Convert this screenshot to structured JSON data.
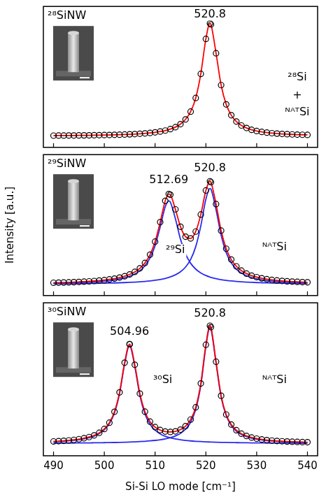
{
  "chart_data": [
    {
      "type": "line",
      "panel_label": "²⁸SiNW",
      "x": [
        490,
        491,
        492,
        493,
        494,
        495,
        496,
        497,
        498,
        499,
        500,
        501,
        502,
        503,
        504,
        505,
        506,
        507,
        508,
        509,
        510,
        511,
        512,
        513,
        514,
        515,
        516,
        517,
        518,
        519,
        520,
        520.8,
        521,
        522,
        523,
        524,
        525,
        526,
        527,
        528,
        529,
        530,
        531,
        532,
        533,
        534,
        535,
        536,
        537,
        538,
        539,
        540
      ],
      "series": [
        {
          "color": "#000000",
          "marker": "circle",
          "line_style": "none",
          "values": [
            0.0042,
            0.0045,
            0.0048,
            0.0051,
            0.0055,
            0.006,
            0.0065,
            0.007,
            0.0076,
            0.0083,
            0.0092,
            0.0101,
            0.0112,
            0.0125,
            0.014,
            0.0158,
            0.0179,
            0.0206,
            0.0238,
            0.0279,
            0.0331,
            0.04,
            0.049,
            0.062,
            0.079,
            0.106,
            0.148,
            0.217,
            0.338,
            0.552,
            0.862,
            1.0,
            0.99,
            0.735,
            0.452,
            0.281,
            0.185,
            0.129,
            0.094,
            0.072,
            0.056,
            0.045,
            0.037,
            0.031,
            0.026,
            0.022,
            0.019,
            0.017,
            0.015,
            0.013,
            0.012,
            0.011
          ]
        },
        {
          "color": "#ff0000",
          "marker": "none",
          "line_style": "solid",
          "values": [
            0.0042,
            0.0045,
            0.0048,
            0.0051,
            0.0055,
            0.006,
            0.0065,
            0.007,
            0.0076,
            0.0083,
            0.0092,
            0.0101,
            0.0112,
            0.0125,
            0.014,
            0.0158,
            0.0179,
            0.0206,
            0.0238,
            0.0279,
            0.0331,
            0.04,
            0.049,
            0.062,
            0.079,
            0.106,
            0.148,
            0.217,
            0.338,
            0.552,
            0.862,
            1.0,
            0.99,
            0.735,
            0.452,
            0.281,
            0.185,
            0.129,
            0.094,
            0.072,
            0.056,
            0.045,
            0.037,
            0.031,
            0.026,
            0.022,
            0.019,
            0.017,
            0.015,
            0.013,
            0.012,
            0.011
          ]
        }
      ],
      "xlim": [
        488,
        542
      ],
      "xticks": [
        490,
        500,
        510,
        520,
        530,
        540
      ],
      "ylim": [
        -0.1,
        1.15
      ],
      "yticks": [],
      "grid": false,
      "tick_labels": false,
      "annotations": [
        {
          "value": 520.8,
          "y": 1.08
        },
        {
          "text": "²⁸Si",
          "x": 538,
          "y": 0.52
        },
        {
          "text": "+",
          "x": 538,
          "y": 0.36
        },
        {
          "text": "ᴺᴬᵀSi",
          "x": 538,
          "y": 0.21
        }
      ]
    },
    {
      "type": "line",
      "panel_label": "²⁹SiNW",
      "ylabel": "Intensity [a.u.]",
      "x": [
        490,
        491,
        492,
        493,
        494,
        495,
        496,
        497,
        498,
        499,
        500,
        501,
        502,
        503,
        504,
        505,
        506,
        507,
        508,
        509,
        510,
        511,
        512,
        512.69,
        513,
        514,
        515,
        516,
        517,
        518,
        519,
        520,
        520.8,
        521,
        522,
        523,
        524,
        525,
        526,
        527,
        528,
        529,
        530,
        531,
        532,
        533,
        534,
        535,
        536,
        537,
        538,
        539,
        540
      ],
      "series": [
        {
          "color": "#000000",
          "marker": "circle",
          "line_style": "none",
          "values": [
            0.0134,
            0.0145,
            0.0158,
            0.0172,
            0.0189,
            0.0209,
            0.0231,
            0.0258,
            0.029,
            0.0329,
            0.0374,
            0.0431,
            0.0503,
            0.0596,
            0.0715,
            0.0876,
            0.1099,
            0.1417,
            0.1892,
            0.2625,
            0.3783,
            0.5506,
            0.7402,
            0.8007,
            0.7943,
            0.6645,
            0.5103,
            0.422,
            0.407,
            0.4678,
            0.6187,
            0.8321,
            0.9142,
            0.9047,
            0.7116,
            0.4757,
            0.3157,
            0.2189,
            0.1592,
            0.1208,
            0.0948,
            0.0765,
            0.0631,
            0.053,
            0.0452,
            0.039,
            0.0341,
            0.03,
            0.0266,
            0.0238,
            0.0214,
            0.0194,
            0.0177
          ]
        },
        {
          "color": "#ff0000",
          "marker": "none",
          "line_style": "solid",
          "values": [
            0.0134,
            0.0145,
            0.0158,
            0.0172,
            0.0189,
            0.0209,
            0.0231,
            0.0258,
            0.029,
            0.0329,
            0.0374,
            0.0431,
            0.0503,
            0.0596,
            0.0715,
            0.0876,
            0.1099,
            0.1417,
            0.1892,
            0.2625,
            0.3783,
            0.5506,
            0.7402,
            0.8007,
            0.7943,
            0.6645,
            0.5103,
            0.422,
            0.407,
            0.4678,
            0.6187,
            0.8321,
            0.9142,
            0.9047,
            0.7116,
            0.4757,
            0.3157,
            0.2189,
            0.1592,
            0.1208,
            0.0948,
            0.0765,
            0.0631,
            0.053,
            0.0452,
            0.039,
            0.0341,
            0.03,
            0.0266,
            0.0238,
            0.0214,
            0.0194,
            0.0177
          ]
        },
        {
          "color": "#2a2af0",
          "marker": "none",
          "line_style": "solid",
          "values": [
            0.0089,
            0.0097,
            0.0106,
            0.0117,
            0.013,
            0.0145,
            0.0162,
            0.0183,
            0.0208,
            0.0239,
            0.0276,
            0.0323,
            0.0383,
            0.0462,
            0.0565,
            0.0707,
            0.0907,
            0.1197,
            0.1637,
            0.2327,
            0.3429,
            0.508,
            0.688,
            0.74,
            0.729,
            0.5806,
            0.399,
            0.2688,
            0.1863,
            0.1343,
            0.1004,
            0.0775,
            0.0642,
            0.0614,
            0.0498,
            0.0411,
            0.0345,
            0.0293,
            0.0252,
            0.0219,
            0.0192,
            0.017,
            0.0151,
            0.0136,
            0.0122,
            0.011,
            0.0101,
            0.0092,
            0.0084,
            0.0077,
            0.0071,
            0.0066,
            0.0062
          ]
        },
        {
          "color": "#2a2af0",
          "marker": "none",
          "line_style": "solid",
          "values": [
            0.0045,
            0.0048,
            0.0052,
            0.0055,
            0.0059,
            0.0064,
            0.0069,
            0.0075,
            0.0082,
            0.009,
            0.0098,
            0.0108,
            0.012,
            0.0134,
            0.015,
            0.0169,
            0.0192,
            0.022,
            0.0255,
            0.0298,
            0.0354,
            0.0426,
            0.0522,
            0.0607,
            0.0653,
            0.0839,
            0.1113,
            0.1532,
            0.2207,
            0.3335,
            0.5183,
            0.7546,
            0.85,
            0.8433,
            0.6618,
            0.4346,
            0.2812,
            0.1896,
            0.134,
            0.0989,
            0.0756,
            0.0595,
            0.048,
            0.0394,
            0.033,
            0.028,
            0.024,
            0.0208,
            0.0182,
            0.0161,
            0.0143,
            0.0128,
            0.0115
          ]
        }
      ],
      "xlim": [
        488,
        542
      ],
      "xticks": [
        490,
        500,
        510,
        520,
        530,
        540
      ],
      "ylim": [
        -0.1,
        1.15
      ],
      "yticks": [],
      "grid": false,
      "tick_labels": false,
      "annotations": [
        {
          "value": 512.69,
          "y": 0.92
        },
        {
          "value": 520.8,
          "y": 1.03
        },
        {
          "text": "²⁹Si",
          "x": 514,
          "y": 0.3
        },
        {
          "text": "ᴺᴬᵀSi",
          "x": 533.5,
          "y": 0.33
        }
      ]
    },
    {
      "type": "line",
      "panel_label": "³⁰SiNW",
      "xlabel": "Si-Si LO mode [cm⁻¹]",
      "x": [
        490,
        491,
        492,
        493,
        494,
        495,
        496,
        497,
        498,
        499,
        500,
        501,
        502,
        503,
        504,
        504.96,
        505,
        506,
        507,
        508,
        509,
        510,
        511,
        512,
        513,
        514,
        515,
        516,
        517,
        518,
        519,
        520,
        520.8,
        521,
        522,
        523,
        524,
        525,
        526,
        527,
        528,
        529,
        530,
        531,
        532,
        533,
        534,
        535,
        536,
        537,
        538,
        539,
        540
      ],
      "series": [
        {
          "color": "#000000",
          "marker": "circle",
          "line_style": "none",
          "values": [
            0.0172,
            0.0196,
            0.0223,
            0.0258,
            0.0301,
            0.0356,
            0.043,
            0.0529,
            0.0669,
            0.0874,
            0.119,
            0.1704,
            0.2594,
            0.4178,
            0.661,
            0.8121,
            0.8119,
            0.6436,
            0.408,
            0.2601,
            0.1791,
            0.1345,
            0.1101,
            0.0979,
            0.0947,
            0.0995,
            0.114,
            0.1425,
            0.1956,
            0.2962,
            0.4909,
            0.8072,
            0.9626,
            0.9508,
            0.6688,
            0.3906,
            0.2371,
            0.1553,
            0.1088,
            0.0804,
            0.0619,
            0.0492,
            0.0401,
            0.0334,
            0.0283,
            0.0243,
            0.0212,
            0.0186,
            0.0164,
            0.0147,
            0.0132,
            0.012,
            0.0109
          ]
        },
        {
          "color": "#ff0000",
          "marker": "none",
          "line_style": "solid",
          "values": [
            0.0172,
            0.0196,
            0.0223,
            0.0258,
            0.0301,
            0.0356,
            0.043,
            0.0529,
            0.0669,
            0.0874,
            0.119,
            0.1704,
            0.2594,
            0.4178,
            0.661,
            0.8121,
            0.8119,
            0.6436,
            0.408,
            0.2601,
            0.1791,
            0.1345,
            0.1101,
            0.0979,
            0.0947,
            0.0995,
            0.114,
            0.1425,
            0.1956,
            0.2962,
            0.4909,
            0.8072,
            0.9626,
            0.9508,
            0.6688,
            0.3906,
            0.2371,
            0.1553,
            0.1088,
            0.0804,
            0.0619,
            0.0492,
            0.0401,
            0.0334,
            0.0283,
            0.0243,
            0.0212,
            0.0186,
            0.0164,
            0.0147,
            0.0132,
            0.012,
            0.0109
          ]
        },
        {
          "color": "#2a2af0",
          "marker": "none",
          "line_style": "solid",
          "values": [
            0.014,
            0.0161,
            0.0186,
            0.0218,
            0.0258,
            0.031,
            0.038,
            0.0475,
            0.061,
            0.081,
            0.1119,
            0.1626,
            0.2508,
            0.4082,
            0.6502,
            0.8,
            0.7997,
            0.6297,
            0.3921,
            0.2417,
            0.1575,
            0.1088,
            0.0791,
            0.0597,
            0.0466,
            0.0373,
            0.0305,
            0.0254,
            0.0215,
            0.0184,
            0.0159,
            0.0139,
            0.0126,
            0.0123,
            0.0109,
            0.0097,
            0.0087,
            0.0079,
            0.0072,
            0.0065,
            0.006,
            0.0055,
            0.0051,
            0.0047,
            0.0044,
            0.004,
            0.0038,
            0.0035,
            0.0033,
            0.0031,
            0.0029,
            0.0028,
            0.0026
          ]
        },
        {
          "color": "#2a2af0",
          "marker": "none",
          "line_style": "solid",
          "values": [
            0.0032,
            0.0035,
            0.0037,
            0.004,
            0.0043,
            0.0046,
            0.005,
            0.0054,
            0.0059,
            0.0064,
            0.0071,
            0.0078,
            0.0086,
            0.0096,
            0.0108,
            0.0121,
            0.0122,
            0.0139,
            0.0159,
            0.0184,
            0.0216,
            0.0257,
            0.031,
            0.0382,
            0.0481,
            0.0622,
            0.0835,
            0.1171,
            0.1741,
            0.2778,
            0.475,
            0.7933,
            0.95,
            0.9385,
            0.6579,
            0.3809,
            0.2284,
            0.1474,
            0.1016,
            0.0739,
            0.0559,
            0.0437,
            0.035,
            0.0287,
            0.0239,
            0.0203,
            0.0174,
            0.0151,
            0.0131,
            0.0116,
            0.0103,
            0.0092,
            0.0083
          ]
        }
      ],
      "xlim": [
        488,
        542
      ],
      "xticks": [
        490,
        500,
        510,
        520,
        530,
        540
      ],
      "ylim": [
        -0.1,
        1.15
      ],
      "yticks": [],
      "grid": false,
      "tick_labels": "x",
      "annotations": [
        {
          "value": 504.96,
          "y": 0.91
        },
        {
          "value": 520.8,
          "y": 1.06
        },
        {
          "text": "³⁰Si",
          "x": 511.5,
          "y": 0.52
        },
        {
          "text": "ᴺᴬᵀSi",
          "x": 533.5,
          "y": 0.52
        }
      ]
    }
  ]
}
